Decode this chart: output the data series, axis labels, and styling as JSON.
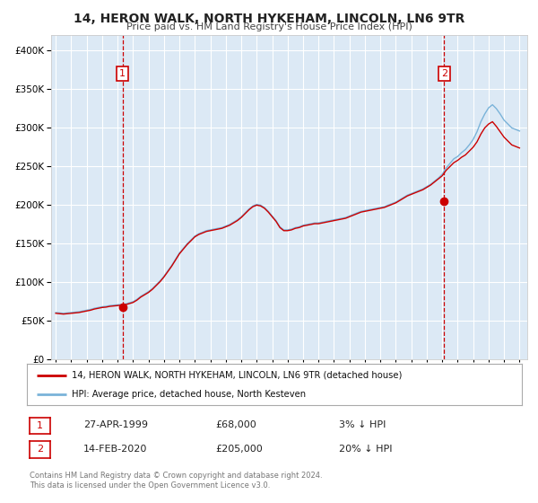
{
  "title": "14, HERON WALK, NORTH HYKEHAM, LINCOLN, LN6 9TR",
  "subtitle": "Price paid vs. HM Land Registry's House Price Index (HPI)",
  "bg_color": "#ffffff",
  "plot_bg_color": "#dce9f5",
  "grid_color": "#ffffff",
  "hpi_color": "#7ab3d9",
  "price_color": "#cc0000",
  "marker_color": "#cc0000",
  "vline_color": "#cc0000",
  "legend_label_price": "14, HERON WALK, NORTH HYKEHAM, LINCOLN, LN6 9TR (detached house)",
  "legend_label_hpi": "HPI: Average price, detached house, North Kesteven",
  "annotation1_label": "1",
  "annotation1_date": "27-APR-1999",
  "annotation1_price": "£68,000",
  "annotation1_pct": "3% ↓ HPI",
  "annotation1_year": 1999.32,
  "annotation1_value": 68000,
  "annotation2_label": "2",
  "annotation2_date": "14-FEB-2020",
  "annotation2_price": "£205,000",
  "annotation2_pct": "20% ↓ HPI",
  "annotation2_year": 2020.12,
  "annotation2_value": 205000,
  "footer": "Contains HM Land Registry data © Crown copyright and database right 2024.\nThis data is licensed under the Open Government Licence v3.0.",
  "ylim": [
    0,
    420000
  ],
  "xlim_start": 1994.7,
  "xlim_end": 2025.5,
  "years_hpi": [
    1995.0,
    1995.25,
    1995.5,
    1995.75,
    1996.0,
    1996.25,
    1996.5,
    1996.75,
    1997.0,
    1997.25,
    1997.5,
    1997.75,
    1998.0,
    1998.25,
    1998.5,
    1998.75,
    1999.0,
    1999.25,
    1999.5,
    1999.75,
    2000.0,
    2000.25,
    2000.5,
    2000.75,
    2001.0,
    2001.25,
    2001.5,
    2001.75,
    2002.0,
    2002.25,
    2002.5,
    2002.75,
    2003.0,
    2003.25,
    2003.5,
    2003.75,
    2004.0,
    2004.25,
    2004.5,
    2004.75,
    2005.0,
    2005.25,
    2005.5,
    2005.75,
    2006.0,
    2006.25,
    2006.5,
    2006.75,
    2007.0,
    2007.25,
    2007.5,
    2007.75,
    2008.0,
    2008.25,
    2008.5,
    2008.75,
    2009.0,
    2009.25,
    2009.5,
    2009.75,
    2010.0,
    2010.25,
    2010.5,
    2010.75,
    2011.0,
    2011.25,
    2011.5,
    2011.75,
    2012.0,
    2012.25,
    2012.5,
    2012.75,
    2013.0,
    2013.25,
    2013.5,
    2013.75,
    2014.0,
    2014.25,
    2014.5,
    2014.75,
    2015.0,
    2015.25,
    2015.5,
    2015.75,
    2016.0,
    2016.25,
    2016.5,
    2016.75,
    2017.0,
    2017.25,
    2017.5,
    2017.75,
    2018.0,
    2018.25,
    2018.5,
    2018.75,
    2019.0,
    2019.25,
    2019.5,
    2019.75,
    2020.0,
    2020.25,
    2020.5,
    2020.75,
    2021.0,
    2021.25,
    2021.5,
    2021.75,
    2022.0,
    2022.25,
    2022.5,
    2022.75,
    2023.0,
    2023.25,
    2023.5,
    2023.75,
    2024.0,
    2024.25,
    2024.5,
    2024.75,
    2025.0
  ],
  "hpi_values": [
    61000,
    60500,
    60000,
    60500,
    61000,
    61500,
    62000,
    63000,
    64000,
    65000,
    66500,
    67500,
    68500,
    69000,
    70000,
    70500,
    71000,
    71500,
    72000,
    73500,
    75000,
    78000,
    82000,
    85000,
    88000,
    92000,
    97000,
    102000,
    108000,
    115000,
    122000,
    130000,
    138000,
    144000,
    150000,
    155000,
    160000,
    163000,
    165000,
    167000,
    168000,
    169000,
    170000,
    171000,
    173000,
    175000,
    178000,
    181000,
    185000,
    190000,
    195000,
    199000,
    201000,
    200000,
    197000,
    192000,
    186000,
    180000,
    172000,
    168000,
    168000,
    169000,
    171000,
    172000,
    174000,
    175000,
    176000,
    177000,
    177000,
    178000,
    179000,
    180000,
    181000,
    182000,
    183000,
    184000,
    186000,
    188000,
    190000,
    192000,
    193000,
    194000,
    195000,
    196000,
    197000,
    198000,
    200000,
    202000,
    204000,
    207000,
    210000,
    213000,
    215000,
    217000,
    219000,
    221000,
    224000,
    227000,
    231000,
    235000,
    240000,
    248000,
    254000,
    260000,
    263000,
    268000,
    272000,
    278000,
    285000,
    295000,
    308000,
    318000,
    326000,
    330000,
    325000,
    318000,
    310000,
    305000,
    300000,
    298000,
    296000
  ],
  "price_values": [
    60000,
    59500,
    59000,
    59500,
    60000,
    60500,
    61000,
    62000,
    63000,
    64000,
    65500,
    66500,
    67500,
    68000,
    69000,
    69500,
    70000,
    70500,
    71000,
    72500,
    74000,
    77000,
    81000,
    84000,
    87000,
    91000,
    96000,
    101000,
    107000,
    114000,
    121000,
    129000,
    137000,
    143000,
    149000,
    154000,
    159000,
    162000,
    164000,
    166000,
    167000,
    168000,
    169000,
    170000,
    172000,
    174000,
    177000,
    180000,
    184000,
    189000,
    194000,
    198000,
    200000,
    199000,
    196000,
    191000,
    185000,
    179000,
    171000,
    167000,
    167000,
    168000,
    170000,
    171000,
    173000,
    174000,
    175000,
    176000,
    176000,
    177000,
    178000,
    179000,
    180000,
    181000,
    182000,
    183000,
    185000,
    187000,
    189000,
    191000,
    192000,
    193000,
    194000,
    195000,
    196000,
    197000,
    199000,
    201000,
    203000,
    206000,
    209000,
    212000,
    214000,
    216000,
    218000,
    220000,
    223000,
    226000,
    230000,
    234000,
    238000,
    245000,
    250000,
    255000,
    258000,
    262000,
    265000,
    270000,
    275000,
    282000,
    292000,
    300000,
    305000,
    308000,
    302000,
    295000,
    288000,
    283000,
    278000,
    276000,
    274000
  ]
}
